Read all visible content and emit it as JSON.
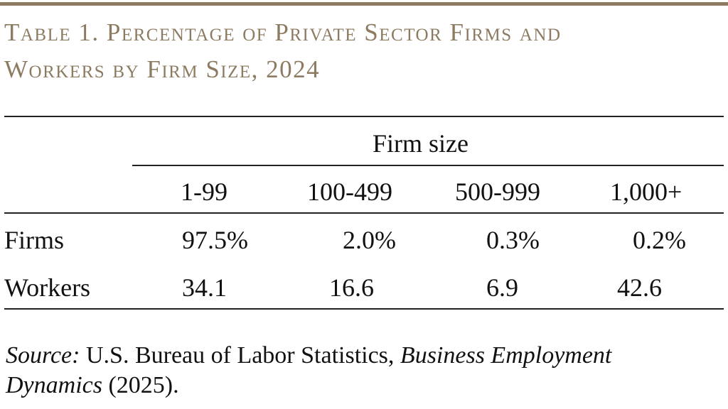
{
  "colors": {
    "accent": "#8c7b61",
    "rule": "#222222",
    "text": "#111111"
  },
  "title": {
    "line1": "Table 1. Percentage of Private Sector Firms and",
    "line2": "Workers by Firm Size, 2024"
  },
  "table": {
    "spanner": "Firm size",
    "columns": [
      "1-99",
      "100-499",
      "500-999",
      "1,000+"
    ],
    "rows": [
      {
        "label": "Firms",
        "values": [
          "97.5%",
          "2.0%",
          "0.3%",
          "0.2%"
        ]
      },
      {
        "label": "Workers",
        "values": [
          "34.1",
          "16.6",
          "6.9",
          "42.6"
        ]
      }
    ]
  },
  "source": {
    "label": "Source:",
    "text1": " U.S. Bureau of Labor Statistics, ",
    "publication1": "Business Employment",
    "publication2": "Dynamics",
    "text2": " (2025)."
  }
}
